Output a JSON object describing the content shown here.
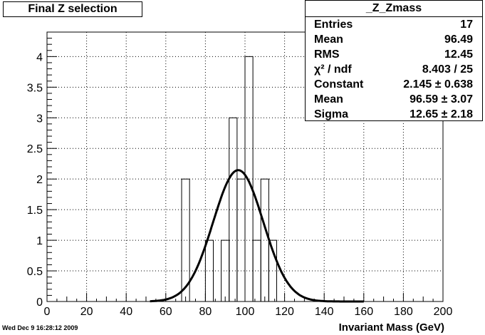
{
  "title_box": "Final Z selection",
  "stats": {
    "title": "_Z_Zmass",
    "rows": [
      {
        "label": "Entries",
        "value": "17"
      },
      {
        "label": "Mean",
        "value": "96.49"
      },
      {
        "label": "RMS",
        "value": "12.45"
      },
      {
        "label": "χ² / ndf",
        "value": "8.403 / 25"
      },
      {
        "label": "Constant",
        "value": "2.145 ± 0.638"
      },
      {
        "label": "Mean",
        "value": "96.59 ± 3.07"
      },
      {
        "label": "Sigma",
        "value": "12.65 ± 2.18"
      }
    ]
  },
  "footer_timestamp": "Wed Dec  9 16:28:12 2009",
  "chart_data": {
    "type": "bar",
    "title": "",
    "xlabel": "Invariant Mass (GeV)",
    "ylabel": "",
    "xlim": [
      0,
      200
    ],
    "ylim": [
      0,
      4.4
    ],
    "grid": true,
    "x_ticks": [
      0,
      20,
      40,
      60,
      80,
      100,
      120,
      140,
      160,
      180,
      200
    ],
    "y_ticks": [
      0,
      0.5,
      1,
      1.5,
      2,
      2.5,
      3,
      3.5,
      4
    ],
    "y_tick_labels": [
      "0",
      "0.5",
      "1",
      "1.5",
      "2",
      "2.5",
      "3",
      "3.5",
      "4"
    ],
    "histogram": {
      "bin_edges": [
        68,
        72,
        80,
        84,
        88,
        92,
        96,
        100,
        104,
        108,
        112,
        116,
        120
      ],
      "counts": [
        2,
        0,
        1,
        0,
        1,
        3,
        2,
        4,
        1,
        2,
        1,
        0
      ]
    },
    "fit": {
      "function": "gaus",
      "constant": 2.145,
      "mean": 96.59,
      "sigma": 12.65,
      "x_range": [
        52,
        160
      ]
    }
  }
}
